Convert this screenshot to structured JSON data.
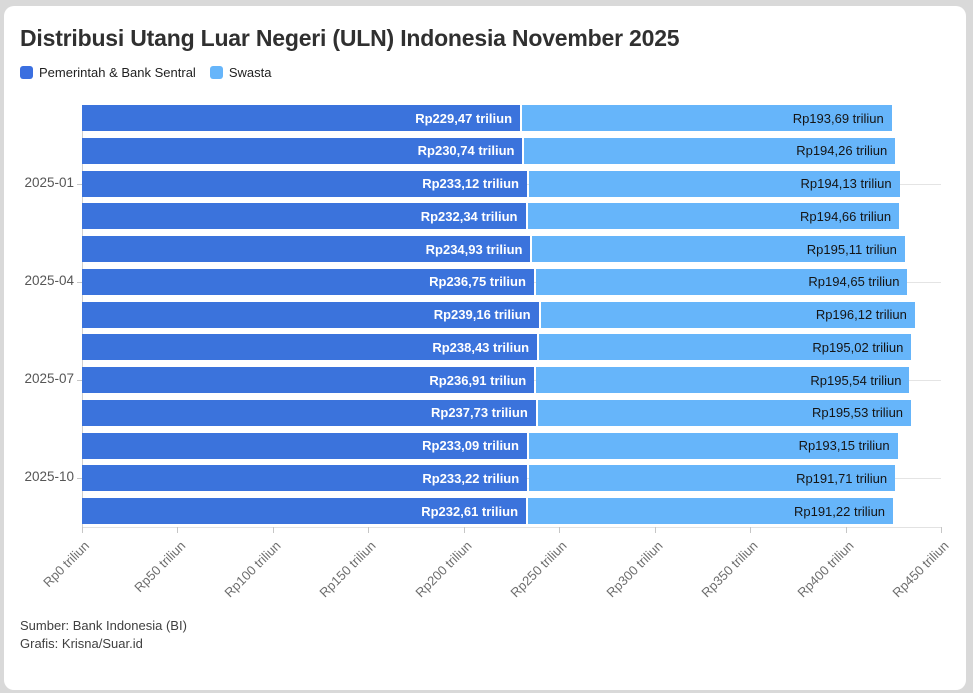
{
  "title": "Distribusi Utang Luar Negeri (ULN) Indonesia November 2025",
  "legend": [
    {
      "label": "Pemerintah & Bank Sentral",
      "color": "#3b6fe0"
    },
    {
      "label": "Swasta",
      "color": "#66b5fa"
    }
  ],
  "footer": {
    "source": "Sumber: Bank Indonesia (BI)",
    "credit": "Grafis: Krisna/Suar.id"
  },
  "chart_data": {
    "type": "bar",
    "orientation": "horizontal",
    "stacked": true,
    "title": "Distribusi Utang Luar Negeri (ULN) Indonesia November 2025",
    "xlim": [
      0,
      450
    ],
    "x_ticks": [
      "Rp0 triliun",
      "Rp50 triliun",
      "Rp100 triliun",
      "Rp150 triliun",
      "Rp200 triliun",
      "Rp250 triliun",
      "Rp300 triliun",
      "Rp350 triliun",
      "Rp400 triliun",
      "Rp450 triliun"
    ],
    "y_tick_labels": {
      "2": "2025-01",
      "5": "2025-04",
      "8": "2025-07",
      "11": "2025-10"
    },
    "grid": "horizontal-at-y-ticks",
    "legend_position": "top-left",
    "series": [
      {
        "name": "Pemerintah & Bank Sentral",
        "color": "#3b73dc",
        "values": [
          229.47,
          230.74,
          233.12,
          232.34,
          234.93,
          236.75,
          239.16,
          238.43,
          236.91,
          237.73,
          233.09,
          233.22,
          232.61
        ],
        "data_labels": [
          "Rp229,47 triliun",
          "Rp230,74 triliun",
          "Rp233,12 triliun",
          "Rp232,34 triliun",
          "Rp234,93 triliun",
          "Rp236,75 triliun",
          "Rp239,16 triliun",
          "Rp238,43 triliun",
          "Rp236,91 triliun",
          "Rp237,73 triliun",
          "Rp233,09 triliun",
          "Rp233,22 triliun",
          "Rp232,61 triliun"
        ]
      },
      {
        "name": "Swasta",
        "color": "#66b5fa",
        "values": [
          193.69,
          194.26,
          194.13,
          194.66,
          195.11,
          194.65,
          196.12,
          195.02,
          195.54,
          195.53,
          193.15,
          191.71,
          191.22
        ],
        "data_labels": [
          "Rp193,69 triliun",
          "Rp194,26 triliun",
          "Rp194,13 triliun",
          "Rp194,66 triliun",
          "Rp195,11 triliun",
          "Rp194,65 triliun",
          "Rp196,12 triliun",
          "Rp195,02 triliun",
          "Rp195,54 triliun",
          "Rp195,53 triliun",
          "Rp193,15 triliun",
          "Rp191,71 triliun",
          "Rp191,22 triliun"
        ]
      }
    ]
  }
}
